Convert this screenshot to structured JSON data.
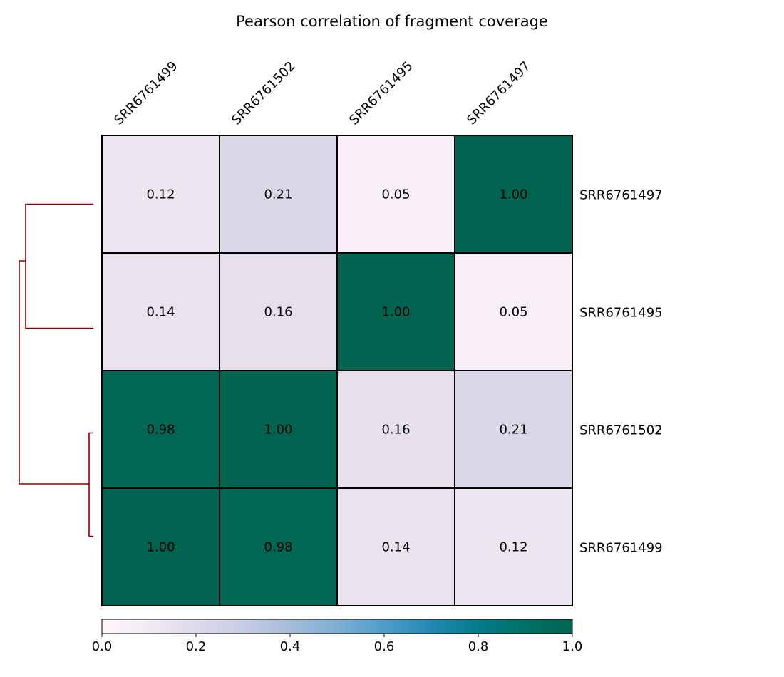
{
  "chart_data": {
    "type": "heatmap",
    "title": "Pearson correlation of fragment coverage",
    "columns": [
      "SRR6761499",
      "SRR6761502",
      "SRR6761495",
      "SRR6761497"
    ],
    "rows": [
      "SRR6761497",
      "SRR6761495",
      "SRR6761502",
      "SRR6761499"
    ],
    "values": [
      [
        0.12,
        0.21,
        0.05,
        1.0
      ],
      [
        0.14,
        0.16,
        1.0,
        0.05
      ],
      [
        0.98,
        1.0,
        0.16,
        0.21
      ],
      [
        1.0,
        0.98,
        0.14,
        0.12
      ]
    ],
    "value_labels": [
      [
        "0.12",
        "0.21",
        "0.05",
        "1.00"
      ],
      [
        "0.14",
        "0.16",
        "1.00",
        "0.05"
      ],
      [
        "0.98",
        "1.00",
        "0.16",
        "0.21"
      ],
      [
        "1.00",
        "0.98",
        "0.14",
        "0.12"
      ]
    ],
    "colorbar": {
      "range": [
        0.0,
        1.0
      ],
      "ticks": [
        0.0,
        0.2,
        0.4,
        0.6,
        0.8,
        1.0
      ],
      "tick_labels": [
        "0.0",
        "0.2",
        "0.4",
        "0.6",
        "0.8",
        "1.0"
      ],
      "colormap": "PuBuGn",
      "stops": [
        "#fff7fb",
        "#ece2f0",
        "#d0d1e6",
        "#a6bddb",
        "#67a9cf",
        "#3690c0",
        "#02818a",
        "#016c59",
        "#014636"
      ]
    },
    "dendrogram": {
      "side": "left",
      "color": "#8b0000",
      "clusters": [
        [
          "SRR6761497",
          "SRR6761495"
        ],
        [
          "SRR6761502",
          "SRR6761499"
        ]
      ]
    },
    "legend": "colorbar-bottom",
    "grid": true
  }
}
